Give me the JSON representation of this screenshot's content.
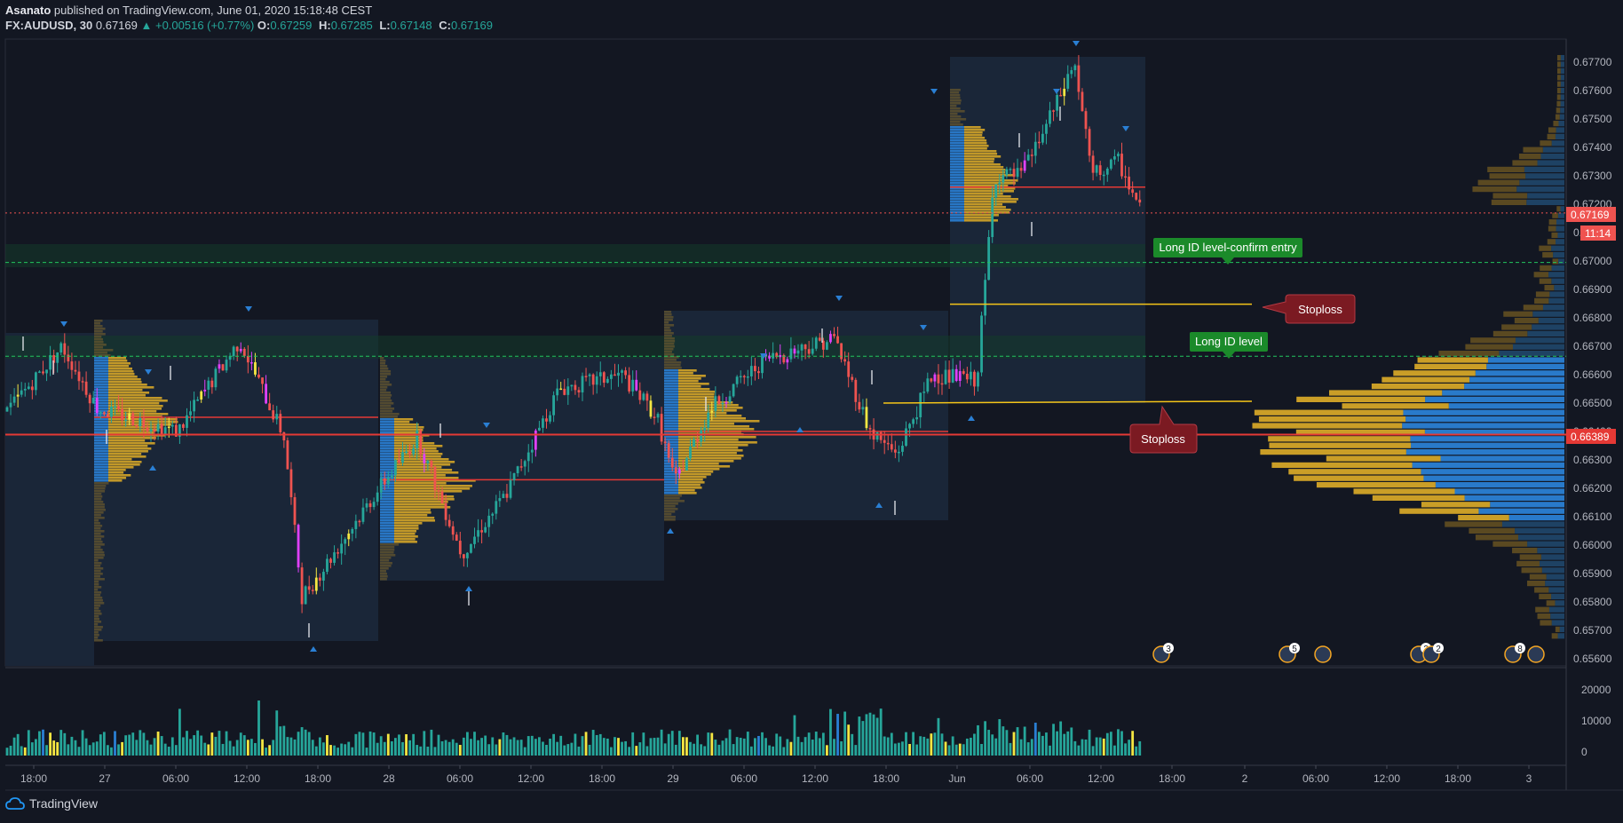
{
  "header": {
    "publisher": "Asanato",
    "published_text": "published on TradingView.com, June 01, 2020 15:18:48 CEST",
    "symbol": "FX:AUDUSD, 30",
    "last": "0.67169",
    "change": "▲ +0.00516 (+0.77%)",
    "ohlc": [
      {
        "label": "O:",
        "value": "0.67259"
      },
      {
        "label": "H:",
        "value": "0.67285"
      },
      {
        "label": "L:",
        "value": "0.67148"
      },
      {
        "label": "C:",
        "value": "0.67169"
      }
    ]
  },
  "footer": {
    "brand": "TradingView"
  },
  "colors": {
    "background": "#131722",
    "bull": "#26a69a",
    "bear": "#ef5350",
    "profile_gold": "#d4a528",
    "profile_blue": "#2a7fd4",
    "poc": "#e53935",
    "stoploss_bg": "#7b1a22",
    "label_green": "#1b8a2a",
    "volume_yellow": "#f5e642",
    "volume_teal": "#26a69a"
  },
  "annotations": {
    "long_id_entry": "Long ID level-confirm entry",
    "long_id_level": "Long ID level",
    "stoploss_1": "Stoploss",
    "stoploss_2": "Stoploss"
  },
  "price_badges": {
    "last_price": "0.67169",
    "countdown": "11:14",
    "poc_price": "0.66389"
  },
  "chart_data": {
    "type": "candlestick",
    "symbol": "FX:AUDUSD",
    "interval": "30",
    "ylim": [
      0.656,
      0.6777
    ],
    "y_ticks": [
      "0.67700",
      "0.67600",
      "0.67500",
      "0.67400",
      "0.67300",
      "0.67200",
      "0.67100",
      "0.67000",
      "0.66900",
      "0.66800",
      "0.66700",
      "0.66600",
      "0.66500",
      "0.66400",
      "0.66300",
      "0.66200",
      "0.66100",
      "0.66000",
      "0.65900",
      "0.65800",
      "0.65700",
      "0.65600"
    ],
    "x_ticks": [
      "18:00",
      "27",
      "06:00",
      "12:00",
      "18:00",
      "28",
      "06:00",
      "12:00",
      "18:00",
      "29",
      "06:00",
      "12:00",
      "18:00",
      "Jun",
      "06:00",
      "12:00",
      "18:00",
      "2",
      "06:00",
      "12:00",
      "18:00",
      "3"
    ],
    "volume_ticks": [
      "20000",
      "10000",
      "0"
    ],
    "levels": {
      "last_price": 0.67169,
      "poc": 0.66389,
      "long_id_confirm_entry": 0.66995,
      "long_id_level": 0.66665,
      "stoploss_1": 0.66848,
      "stoploss_2": 0.665
    },
    "session_pocs": [
      0.6645,
      0.6623,
      0.664,
      0.6726
    ],
    "event_markers": [
      "3",
      "5",
      "2",
      "2",
      "8"
    ],
    "grid": false
  }
}
